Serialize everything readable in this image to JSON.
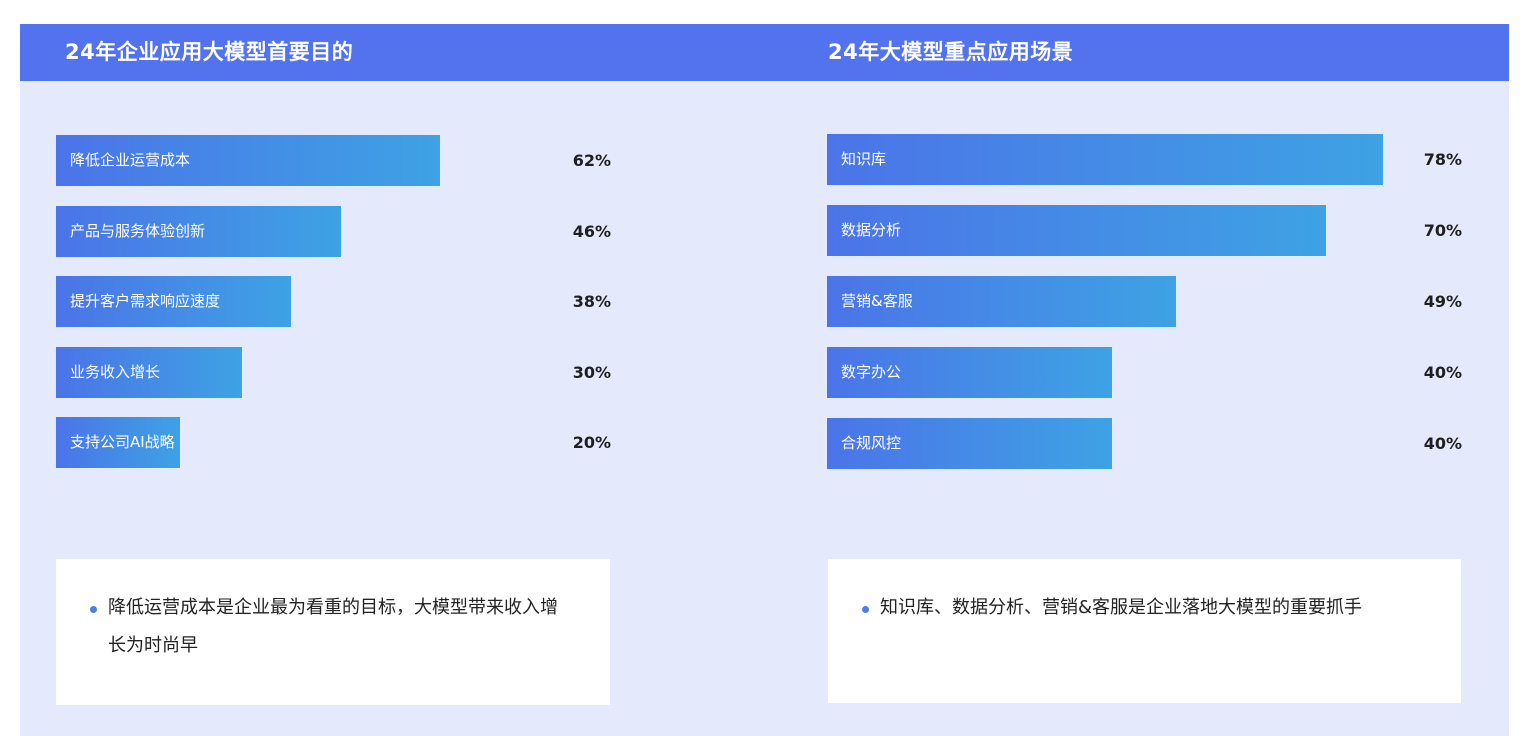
{
  "colors": {
    "header": "#5272ee",
    "background": "#e4eafb",
    "bar_start": "#4b74e8",
    "bar_end": "#3ea2e4",
    "bullet": "#4a7fe6"
  },
  "panels": {
    "left": {
      "title": "24年企业应用大模型首要目的",
      "note": "降低运营成本是企业最为看重的目标，大模型带来收入增长为时尚早"
    },
    "right": {
      "title": "24年大模型重点应用场景",
      "note": "知识库、数据分析、营销&客服是企业落地大模型的重要抓手"
    }
  },
  "chart_data": [
    {
      "type": "bar",
      "orientation": "horizontal",
      "title": "24年企业应用大模型首要目的",
      "categories": [
        "降低企业运营成本",
        "产品与服务体验创新",
        "提升客户需求响应速度",
        "业务收入增长",
        "支持公司AI战略"
      ],
      "values": [
        62,
        46,
        38,
        30,
        20
      ],
      "value_labels": [
        "62%",
        "46%",
        "38%",
        "30%",
        "20%"
      ],
      "unit": "%",
      "grid": false,
      "legend": "none"
    },
    {
      "type": "bar",
      "orientation": "horizontal",
      "title": "24年大模型重点应用场景",
      "categories": [
        "知识库",
        "数据分析",
        "营销&客服",
        "数字办公",
        "合规风控"
      ],
      "values": [
        78,
        70,
        49,
        40,
        40
      ],
      "value_labels": [
        "78%",
        "70%",
        "49%",
        "40%",
        "40%"
      ],
      "unit": "%",
      "grid": false,
      "legend": "none"
    }
  ]
}
